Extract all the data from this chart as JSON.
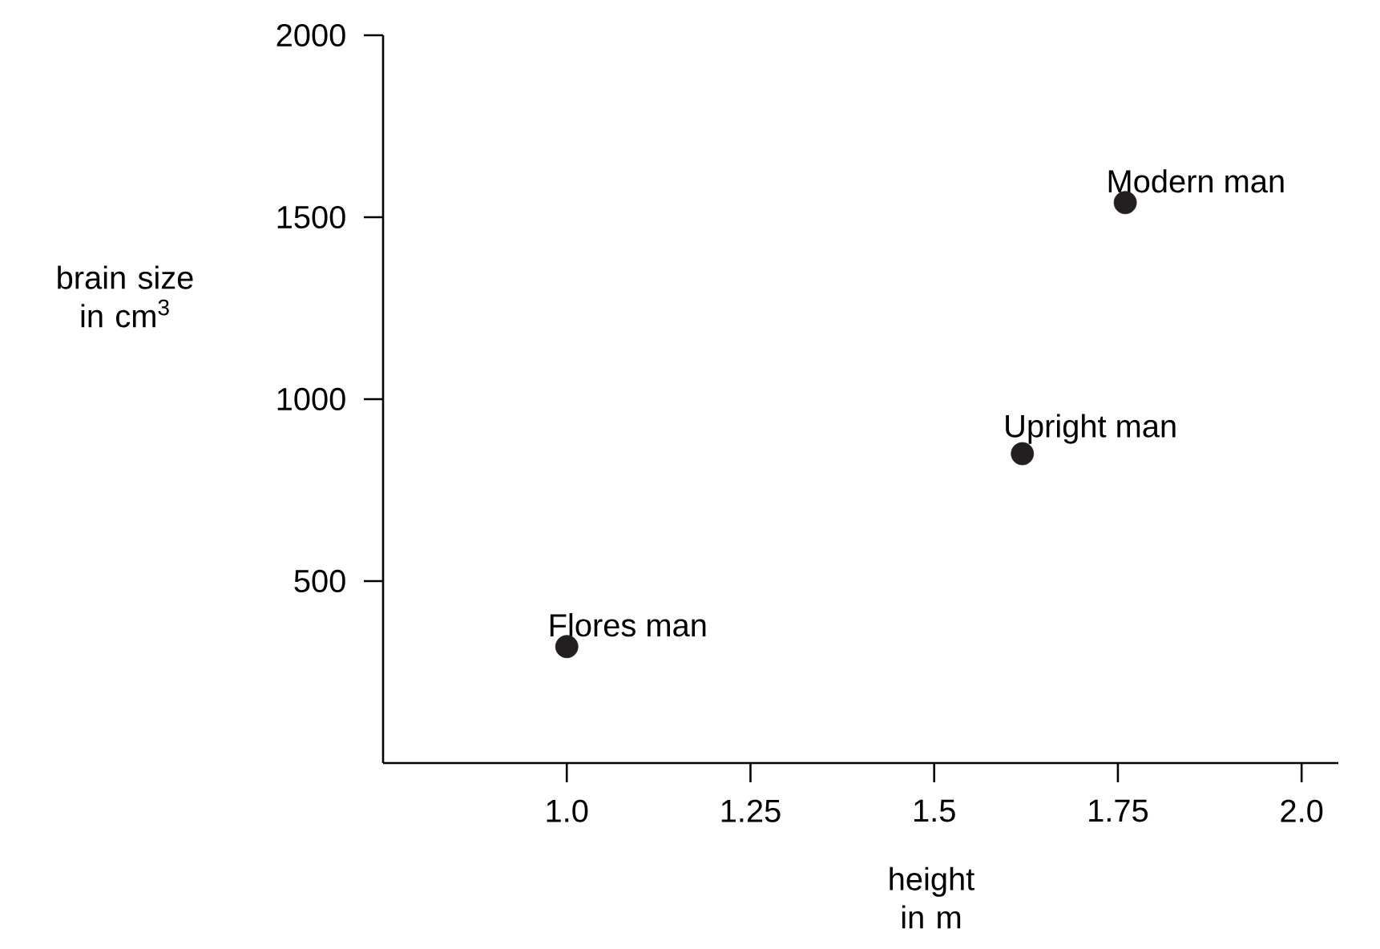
{
  "chart_data": {
    "type": "scatter",
    "xlabel": "height in m",
    "ylabel": "brain size in cm$^{3}$",
    "x": [
      1.0,
      1.62,
      1.76
    ],
    "values": [
      320,
      850,
      1540
    ],
    "color": "#231f20",
    "marker": "circle",
    "xlim": [
      0.75,
      2.05
    ],
    "ylim": [
      0,
      2000
    ],
    "xticks": [
      {
        "value": 1.0,
        "label": "1.0"
      },
      1.25,
      1.5,
      1.75,
      {
        "value": 2.0,
        "label": "2.0"
      }
    ],
    "yticks": [
      500,
      1000,
      1500,
      2000
    ],
    "annotations": [
      {
        "text": "Flores man",
        "x": 1.0,
        "y": 320
      },
      {
        "text": "Upright man",
        "x": 1.62,
        "y": 850
      },
      {
        "text": "Modern man",
        "x": 1.76,
        "y": 1540
      }
    ]
  }
}
